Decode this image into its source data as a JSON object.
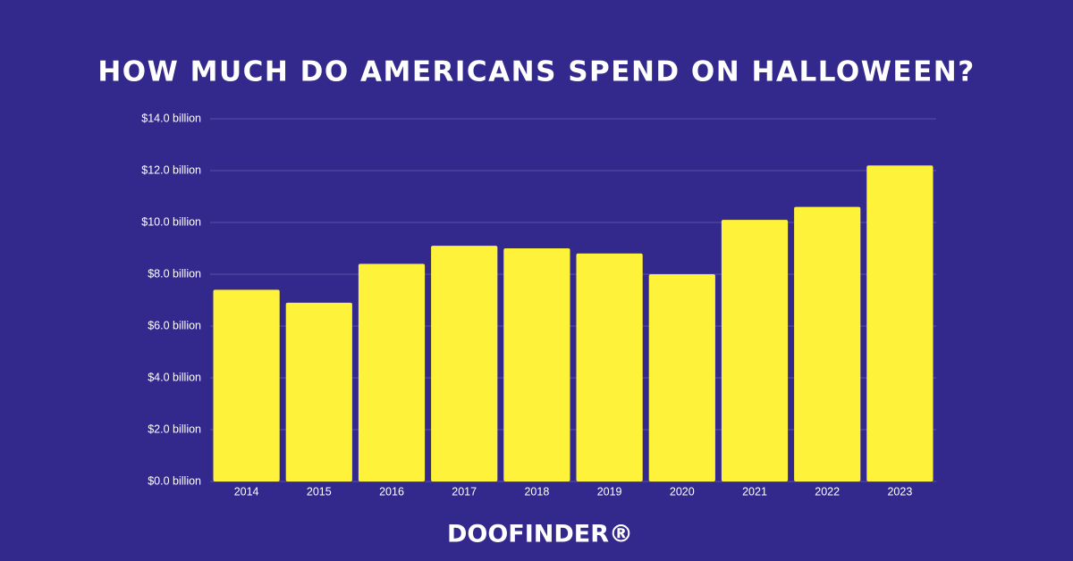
{
  "chart_data": {
    "type": "bar",
    "title": "HOW MUCH DO AMERICANS SPEND ON HALLOWEEN?",
    "categories": [
      "2014",
      "2015",
      "2016",
      "2017",
      "2018",
      "2019",
      "2020",
      "2021",
      "2022",
      "2023"
    ],
    "values": [
      7.4,
      6.9,
      8.4,
      9.1,
      9.0,
      8.8,
      8.0,
      10.1,
      10.6,
      12.2
    ],
    "color": "#fff23a",
    "ylim": [
      0,
      14
    ],
    "yticks": [
      {
        "value": 0,
        "label": "$0.0 billion"
      },
      {
        "value": 2,
        "label": "$2.0 billion"
      },
      {
        "value": 4,
        "label": "$4.0 billion"
      },
      {
        "value": 6,
        "label": "$6.0 billion"
      },
      {
        "value": 8,
        "label": "$8.0 billion"
      },
      {
        "value": 10,
        "label": "$10.0 billion"
      },
      {
        "value": 12,
        "label": "$12.0 billion"
      },
      {
        "value": 14,
        "label": "$14.0 billion"
      }
    ],
    "grid": true,
    "logo": "DOOFINDER®"
  }
}
